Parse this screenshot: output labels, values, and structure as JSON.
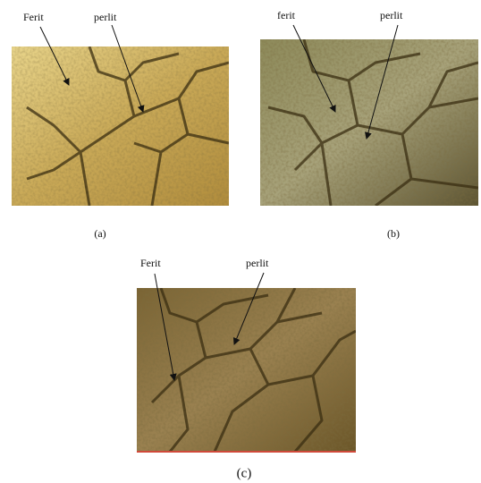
{
  "panels": [
    {
      "caption": "(a)",
      "labels": [
        "Ferit",
        "perlit"
      ]
    },
    {
      "caption": "(b)",
      "labels": [
        "ferit",
        "perlit"
      ]
    },
    {
      "caption": "(c)",
      "labels": [
        "Ferit",
        "perlit"
      ]
    }
  ]
}
